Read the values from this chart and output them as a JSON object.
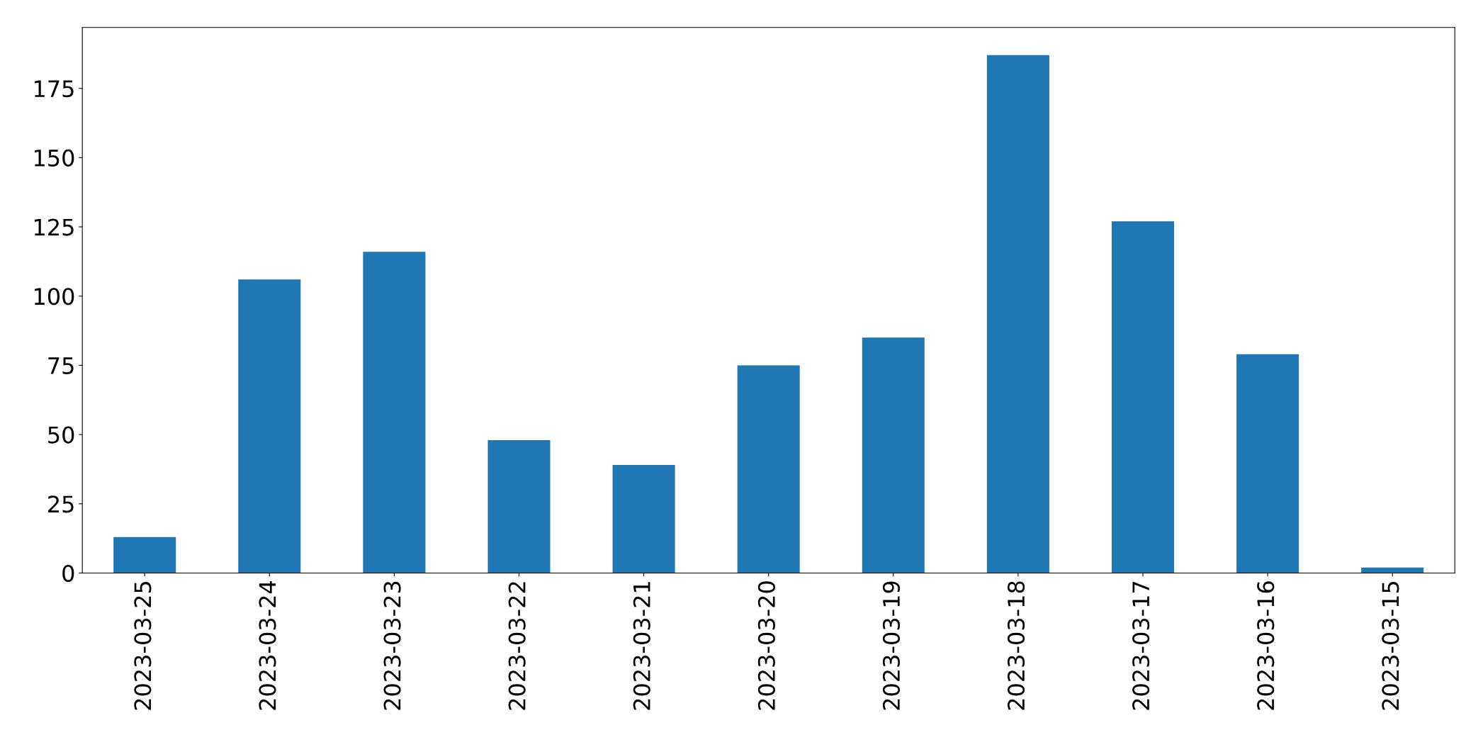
{
  "chart_data": {
    "type": "bar",
    "categories": [
      "2023-03-25",
      "2023-03-24",
      "2023-03-23",
      "2023-03-22",
      "2023-03-21",
      "2023-03-20",
      "2023-03-19",
      "2023-03-18",
      "2023-03-17",
      "2023-03-16",
      "2023-03-15"
    ],
    "values": [
      13,
      106,
      116,
      48,
      39,
      75,
      85,
      187,
      127,
      79,
      2
    ],
    "color": "#1f77b4",
    "ylim": [
      0,
      197
    ],
    "yticks": [
      0,
      25,
      50,
      75,
      100,
      125,
      150,
      175
    ],
    "grid": false
  }
}
